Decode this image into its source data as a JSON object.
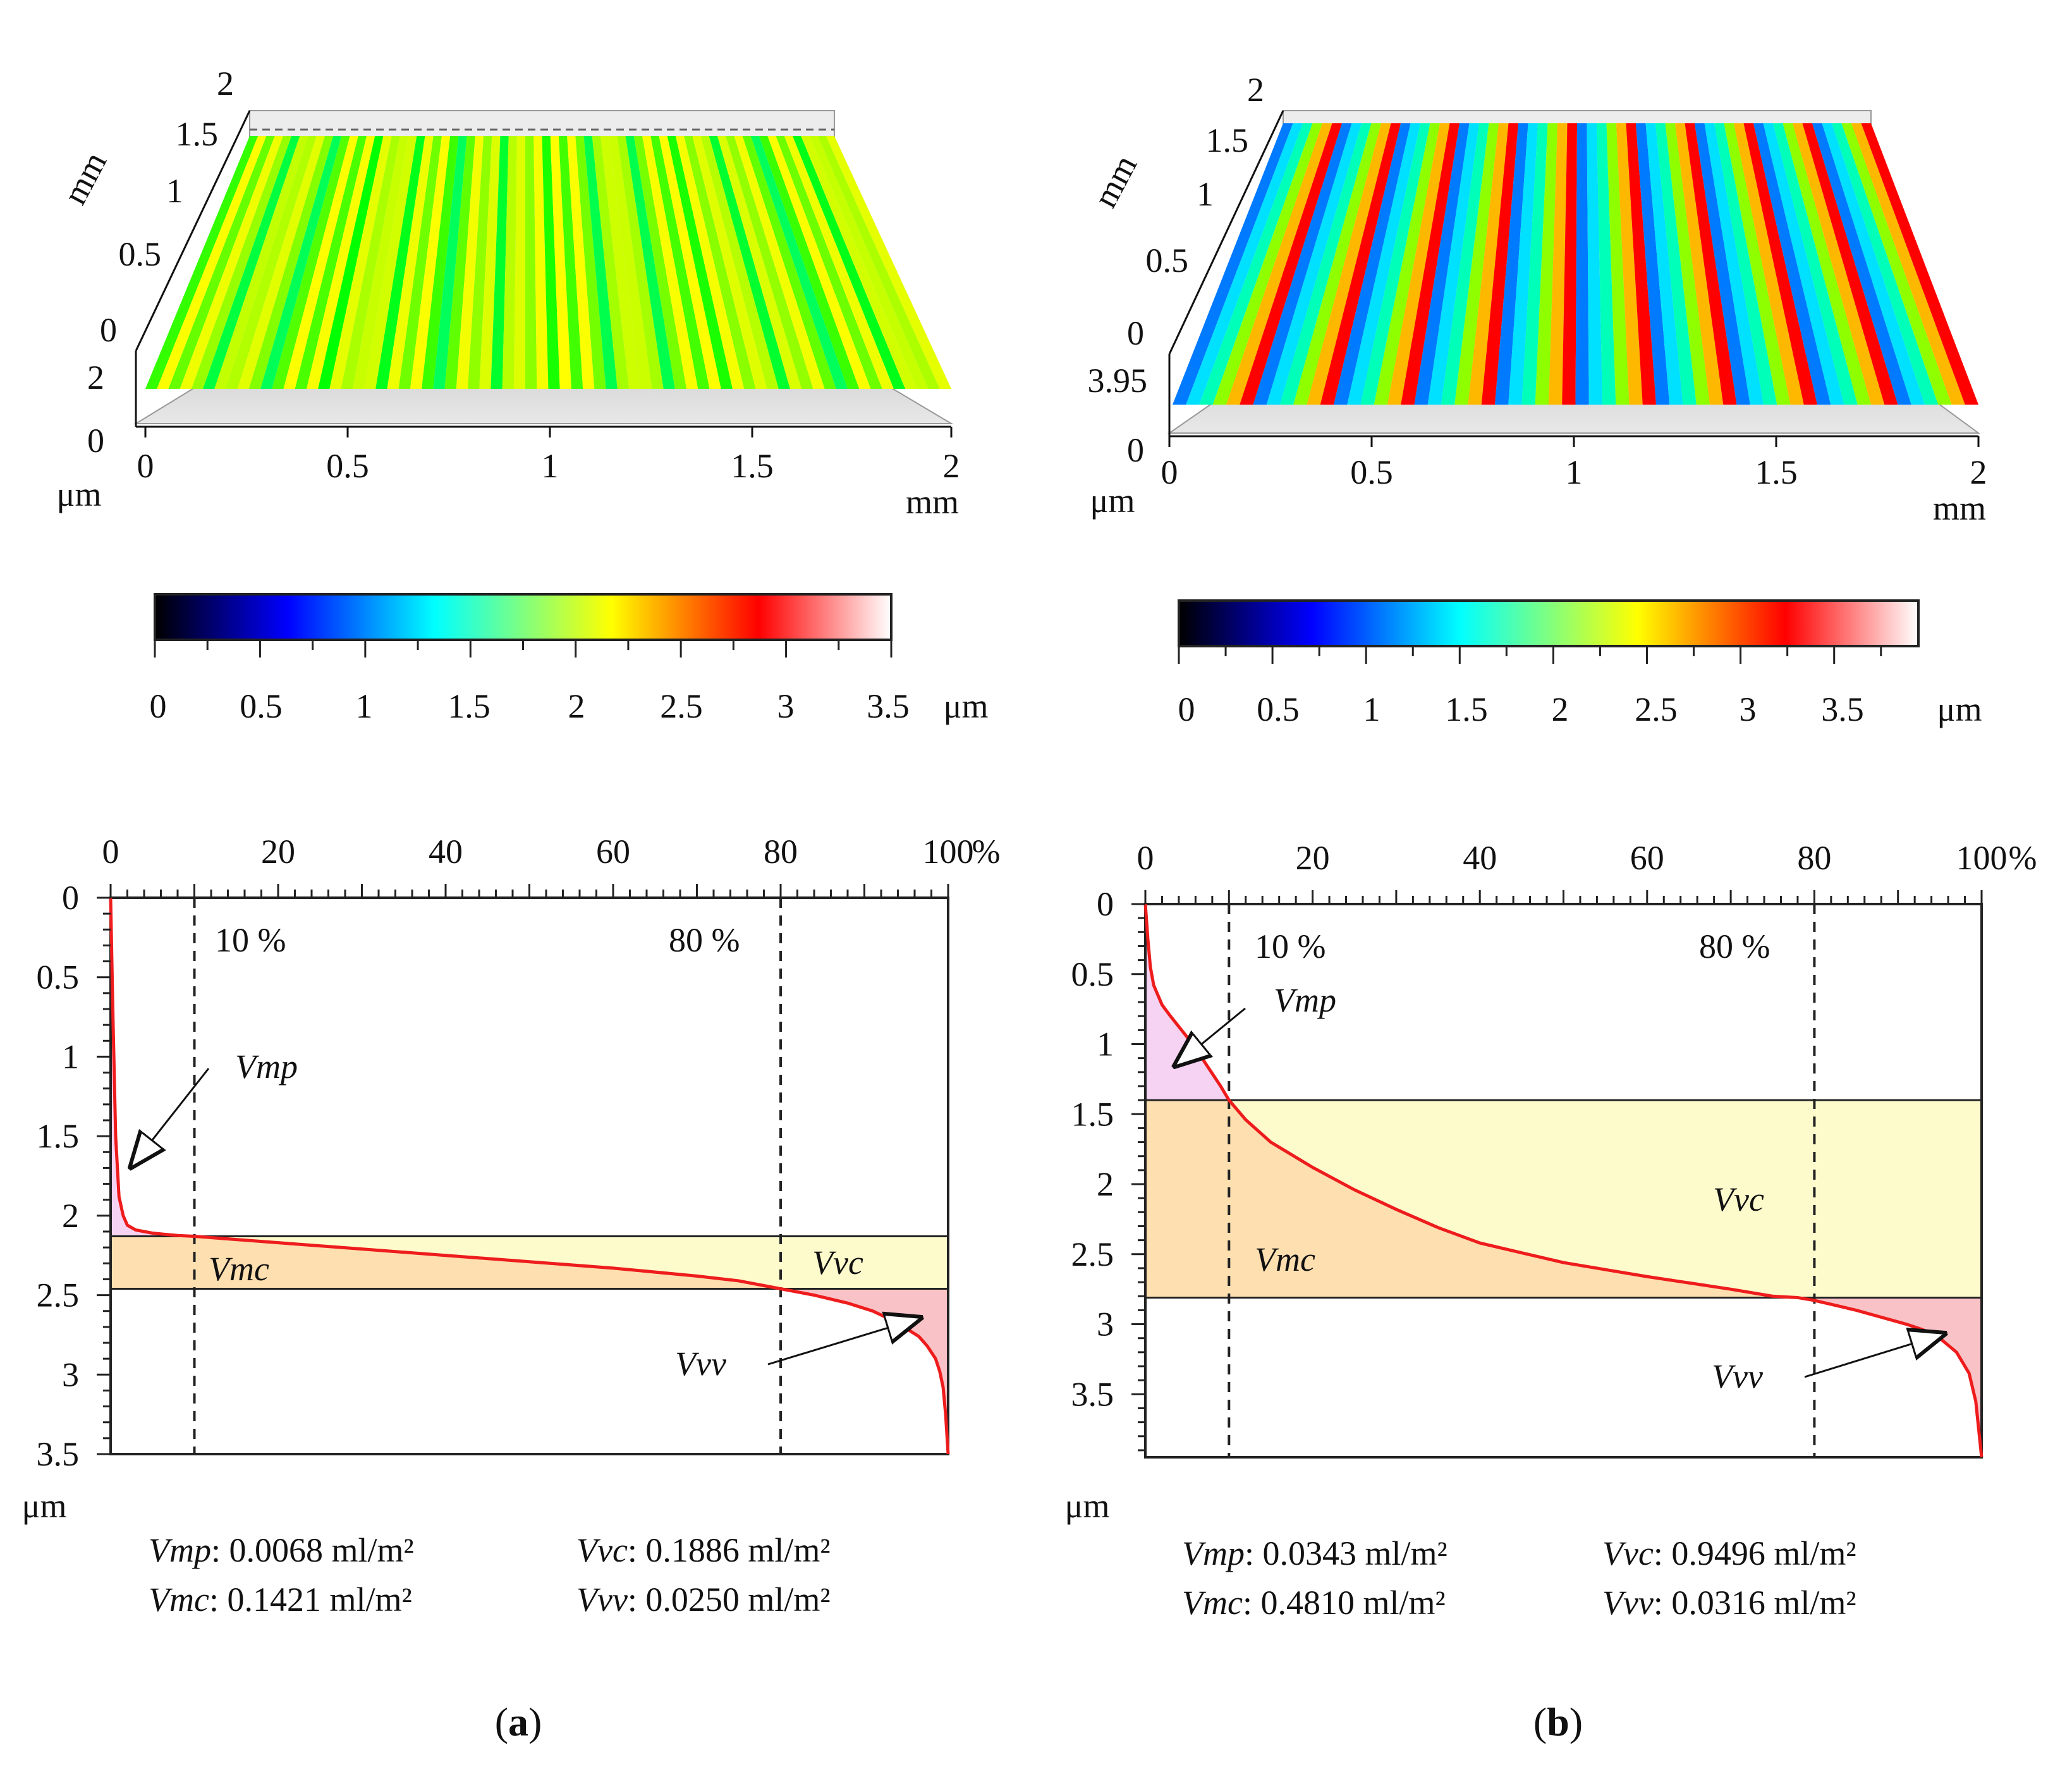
{
  "panels": [
    {
      "letter": "a",
      "surface": {
        "x_ticks": [
          "0",
          "0.5",
          "1",
          "1.5",
          "2"
        ],
        "x_unit": "mm",
        "y_ticks": [
          "0",
          "0.5",
          "1",
          "1.5",
          "2"
        ],
        "y_unit": "mm",
        "z_ticks": [
          "0",
          "2"
        ],
        "z_unit": "μm",
        "palette": "green-yellow",
        "grooves": 70
      },
      "colorbar": {
        "ticks": [
          "0",
          "0.5",
          "1",
          "1.5",
          "2",
          "2.5",
          "3",
          "3.5"
        ],
        "unit": "μm",
        "range": [
          0,
          3.5
        ],
        "stops": [
          "#000000",
          "#0000ff",
          "#00ffff",
          "#ffff00",
          "#ff0000",
          "#ffffff"
        ]
      }
    },
    {
      "letter": "b",
      "surface": {
        "x_ticks": [
          "0",
          "0.5",
          "1",
          "1.5",
          "2"
        ],
        "x_unit": "mm",
        "y_ticks": [
          "0",
          "0.5",
          "1",
          "1.5",
          "2"
        ],
        "y_unit": "mm",
        "z_ticks": [
          "0",
          "3.95"
        ],
        "z_unit": "μm",
        "palette": "blue-red",
        "grooves": 12
      },
      "colorbar": {
        "ticks": [
          "0",
          "0.5",
          "1",
          "1.5",
          "2",
          "2.5",
          "3",
          "3.5"
        ],
        "unit": "μm",
        "range": [
          0,
          3.95
        ],
        "stops": [
          "#000000",
          "#0000ff",
          "#00ffff",
          "#ffff00",
          "#ff0000",
          "#ffffff"
        ]
      }
    }
  ],
  "chart_data": [
    {
      "type": "line",
      "panel": "a",
      "x_label": "%",
      "y_label": "μm",
      "x_ticks": [
        "0",
        "20",
        "40",
        "60",
        "80",
        "100"
      ],
      "y_ticks": [
        "0",
        "0.5",
        "1",
        "1.5",
        "2",
        "2.5",
        "3",
        "3.5"
      ],
      "xlim": [
        0,
        100
      ],
      "ylim": [
        0,
        3.5
      ],
      "vlines": [
        {
          "x": 10,
          "label": "10 %"
        },
        {
          "x": 80,
          "label": "80 %"
        }
      ],
      "hlines": [
        2.13,
        2.46
      ],
      "curve": {
        "x": [
          0,
          0.3,
          0.6,
          1,
          1.5,
          2,
          3,
          5,
          8,
          10,
          15,
          20,
          30,
          40,
          50,
          60,
          70,
          75,
          78,
          80,
          84,
          88,
          91,
          93,
          95,
          96.5,
          97.5,
          98.5,
          99,
          99.4,
          99.7,
          100
        ],
        "y": [
          0,
          0.8,
          1.5,
          1.88,
          2.0,
          2.06,
          2.09,
          2.11,
          2.125,
          2.13,
          2.15,
          2.17,
          2.21,
          2.25,
          2.29,
          2.33,
          2.38,
          2.41,
          2.44,
          2.46,
          2.5,
          2.55,
          2.6,
          2.65,
          2.71,
          2.76,
          2.82,
          2.9,
          2.98,
          3.08,
          3.25,
          3.5
        ]
      },
      "annotations": [
        "Vmp",
        "Vmc",
        "Vvc",
        "Vvv"
      ],
      "params": [
        {
          "name": "Vmp",
          "value": ": 0.0068 ml/m²"
        },
        {
          "name": "Vvc",
          "value": ": 0.1886 ml/m²"
        },
        {
          "name": "Vmc",
          "value": ": 0.1421 ml/m²"
        },
        {
          "name": "Vvv",
          "value": ": 0.0250 ml/m²"
        }
      ]
    },
    {
      "type": "line",
      "panel": "b",
      "x_label": "%",
      "y_label": "μm",
      "x_ticks": [
        "0",
        "20",
        "40",
        "60",
        "80",
        "100"
      ],
      "y_ticks": [
        "0",
        "0.5",
        "1",
        "1.5",
        "2",
        "2.5",
        "3",
        "3.5"
      ],
      "xlim": [
        0,
        100
      ],
      "ylim": [
        0,
        3.95
      ],
      "vlines": [
        {
          "x": 10,
          "label": "10 %"
        },
        {
          "x": 80,
          "label": "80 %"
        }
      ],
      "hlines": [
        1.4,
        2.81
      ],
      "curve": {
        "x": [
          0,
          0.3,
          0.6,
          1,
          2,
          3,
          5,
          7,
          9,
          10,
          12,
          15,
          20,
          25,
          30,
          35,
          40,
          50,
          60,
          70,
          75,
          78,
          80,
          85,
          88,
          91,
          93,
          95,
          97,
          98.5,
          99.3,
          100
        ],
        "y": [
          0,
          0.25,
          0.45,
          0.58,
          0.72,
          0.8,
          0.95,
          1.12,
          1.3,
          1.4,
          1.54,
          1.7,
          1.88,
          2.04,
          2.18,
          2.31,
          2.42,
          2.56,
          2.66,
          2.75,
          2.8,
          2.81,
          2.83,
          2.9,
          2.95,
          3.0,
          3.04,
          3.1,
          3.2,
          3.35,
          3.55,
          3.95
        ]
      },
      "annotations": [
        "Vmp",
        "Vmc",
        "Vvc",
        "Vvv"
      ],
      "params": [
        {
          "name": "Vmp",
          "value": ": 0.0343 ml/m²"
        },
        {
          "name": "Vvc",
          "value": ": 0.9496 ml/m²"
        },
        {
          "name": "Vmc",
          "value": ": 0.4810 ml/m²"
        },
        {
          "name": "Vvv",
          "value": ": 0.0316 ml/m²"
        }
      ]
    }
  ]
}
